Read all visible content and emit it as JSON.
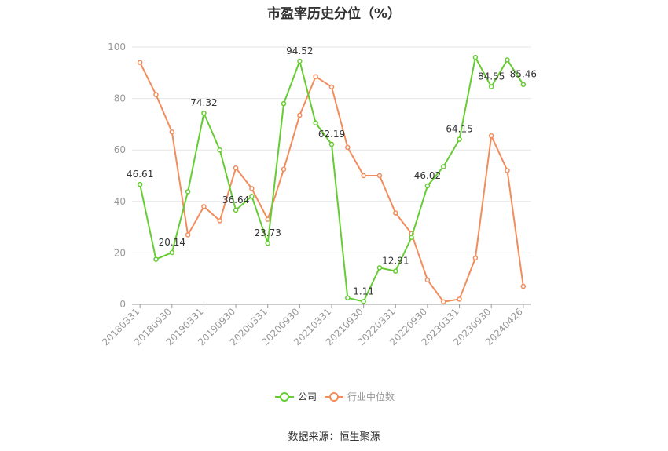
{
  "title": "市盈率历史分位（%）",
  "source": "数据来源：恒生聚源",
  "chart_data": {
    "type": "line",
    "title": "市盈率历史分位（%）",
    "ylim": [
      0,
      100
    ],
    "y_ticks": [
      0,
      20,
      40,
      60,
      80,
      100
    ],
    "x_tick_labels": [
      "20180331",
      "20180930",
      "20190331",
      "20190930",
      "20200331",
      "20200930",
      "20210331",
      "20210930",
      "20220331",
      "20220930",
      "20230331",
      "20230930",
      "20240426"
    ],
    "grid": true,
    "legend_position": "bottom",
    "colors": {
      "company": "#66cc33",
      "industry": "#f28c5c"
    },
    "series": [
      {
        "name": "公司",
        "values": [
          46.61,
          17.5,
          20.14,
          43.8,
          74.32,
          60.0,
          36.64,
          42.0,
          23.73,
          78.0,
          94.52,
          70.5,
          62.19,
          2.5,
          1.11,
          14.2,
          12.91,
          26.0,
          46.02,
          53.5,
          64.15,
          96.0,
          84.55,
          95.0,
          85.46
        ],
        "labels": {
          "0": "46.61",
          "2": "20.14",
          "4": "74.32",
          "6": "36.64",
          "8": "23.73",
          "10": "94.52",
          "12": "62.19",
          "14": "1.11",
          "16": "12.91",
          "18": "46.02",
          "20": "64.15",
          "22": "84.55",
          "24": "85.46"
        }
      },
      {
        "name": "行业中位数",
        "values": [
          94.0,
          81.5,
          67.0,
          27.0,
          38.0,
          32.5,
          53.0,
          45.0,
          33.0,
          52.5,
          73.5,
          88.5,
          84.5,
          61.0,
          50.0,
          50.0,
          35.5,
          27.5,
          9.5,
          1.0,
          2.0,
          18.0,
          65.5,
          52.0,
          7.0
        ]
      }
    ]
  }
}
